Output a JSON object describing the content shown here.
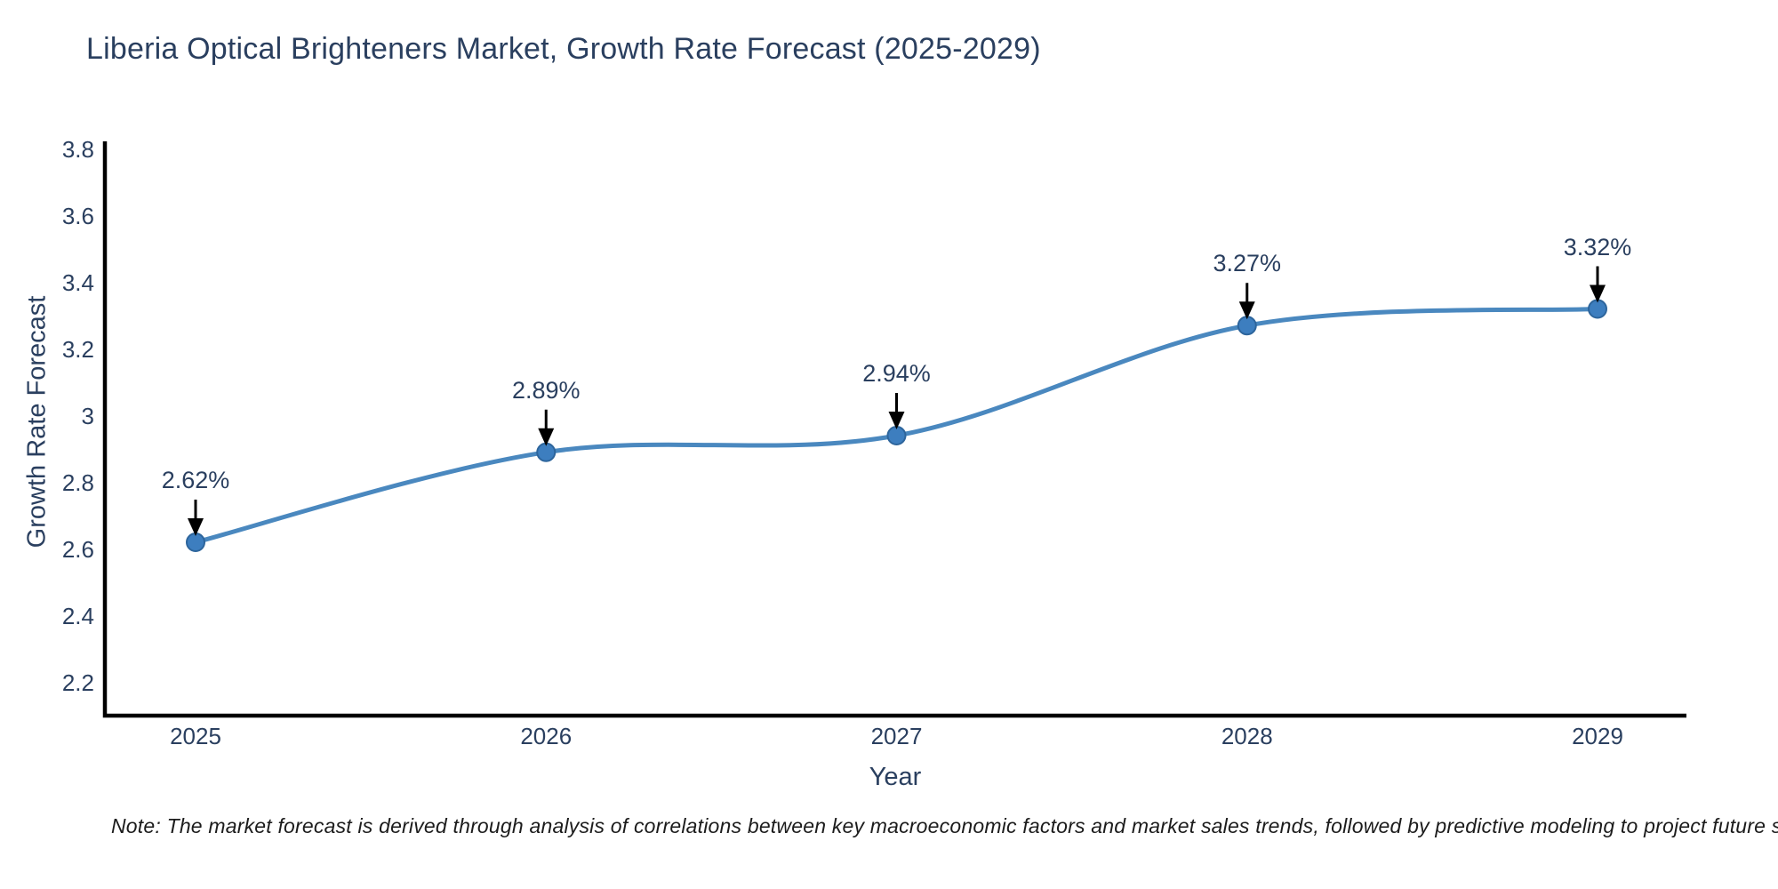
{
  "title": "Liberia Optical Brighteners Market, Growth Rate Forecast (2025-2029)",
  "note": "Note: The market forecast is derived through analysis of correlations between key macroeconomic factors and market sales trends, followed by predictive modeling to project future sales",
  "chart_data": {
    "type": "line",
    "line_shape": "spline",
    "markers": true,
    "grid": false,
    "legend": false,
    "title": "Liberia Optical Brighteners Market, Growth Rate Forecast (2025-2029)",
    "xlabel": "Year",
    "ylabel": "Growth Rate Forecast",
    "categories": [
      "2025",
      "2026",
      "2027",
      "2028",
      "2029"
    ],
    "x": [
      2025,
      2026,
      2027,
      2028,
      2029
    ],
    "series": [
      {
        "name": "Growth Rate Forecast",
        "values": [
          2.62,
          2.89,
          2.94,
          3.27,
          3.32
        ],
        "point_labels": [
          "2.62%",
          "2.89%",
          "2.94%",
          "3.27%",
          "3.32%"
        ]
      }
    ],
    "ylim": [
      2.1,
      3.82
    ],
    "yticks": [
      2.2,
      2.4,
      2.6,
      2.8,
      3,
      3.2,
      3.4,
      3.6,
      3.8
    ],
    "ytick_labels": [
      "2.2",
      "2.4",
      "2.6",
      "2.8",
      "3",
      "3.2",
      "3.4",
      "3.6",
      "3.8"
    ],
    "colors": {
      "line": "#4a88bf",
      "marker_fill": "#3d7ebf",
      "marker_edge": "#2d659c",
      "axis": "#000000",
      "text": "#2a3f5f",
      "annotation_arrow": "#000000"
    }
  }
}
